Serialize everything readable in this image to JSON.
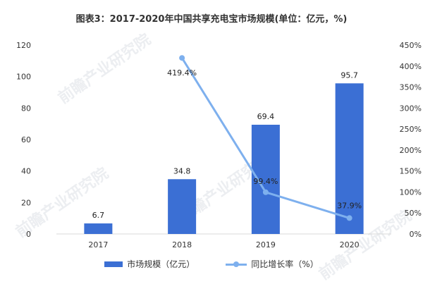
{
  "title": "图表3：2017-2020年中国共享充电宝市场规模(单位：亿元，%)",
  "watermark": "前瞻产业研究院",
  "colors": {
    "bar": "#3B6FD4",
    "line": "#7EB0EE",
    "axis_text": "#333333",
    "grid": "#d9d9d9"
  },
  "chart_data": {
    "type": "bar",
    "categories": [
      "2017",
      "2018",
      "2019",
      "2020"
    ],
    "series": [
      {
        "name": "市场规模（亿元）",
        "type": "bar",
        "axis": "left",
        "values": [
          6.7,
          34.8,
          69.4,
          95.7
        ],
        "labels": [
          "6.7",
          "34.8",
          "69.4",
          "95.7"
        ]
      },
      {
        "name": "同比增长率（%）",
        "type": "line",
        "axis": "right",
        "values": [
          null,
          419.4,
          99.4,
          37.9
        ],
        "labels": [
          "",
          "419.4%",
          "99.4%",
          "37.9%"
        ]
      }
    ],
    "y_left": {
      "range": [
        0,
        120
      ],
      "ticks": [
        "0",
        "20",
        "40",
        "60",
        "80",
        "100",
        "120"
      ]
    },
    "y_right": {
      "range": [
        0,
        450
      ],
      "ticks": [
        "0%",
        "50%",
        "100%",
        "150%",
        "200%",
        "250%",
        "300%",
        "350%",
        "400%",
        "450%"
      ]
    },
    "grid": false,
    "legend": "bottom"
  }
}
